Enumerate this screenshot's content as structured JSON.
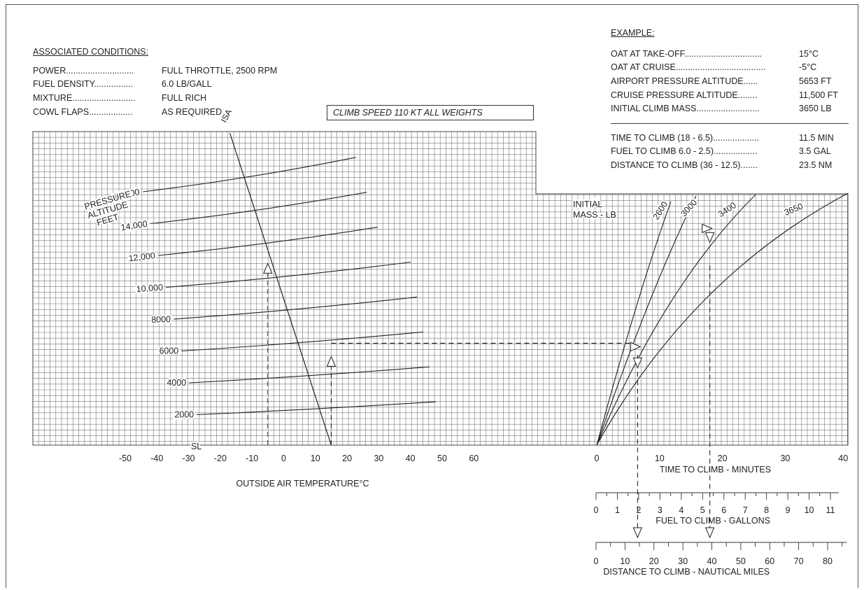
{
  "associated_conditions": {
    "title": "ASSOCIATED CONDITIONS:",
    "rows": [
      {
        "label": "POWER............................",
        "value": "FULL THROTTLE,  2500 RPM"
      },
      {
        "label": "FUEL DENSITY................",
        "value": "6.0 LB/GALL"
      },
      {
        "label": "MIXTURE..........................",
        "value": "FULL RICH"
      },
      {
        "label": "COWL FLAPS..................",
        "value": "AS REQUIRED"
      }
    ]
  },
  "climb_speed": "CLIMB SPEED  110 KT ALL WEIGHTS",
  "example": {
    "title": "EXAMPLE:",
    "rows": [
      {
        "label": "OAT AT TAKE-OFF................................",
        "value": "15°C"
      },
      {
        "label": "OAT AT CRUISE.....................................",
        "value": "-5°C"
      },
      {
        "label": "AIRPORT PRESSURE ALTITUDE......",
        "value": "5653 FT"
      },
      {
        "label": "CRUISE PRESSURE ALTITUDE........",
        "value": "11,500 FT"
      },
      {
        "label": "INITIAL CLIMB MASS..........................",
        "value": "3650 LB"
      }
    ],
    "results": [
      {
        "label": "TIME TO CLIMB (18 - 6.5)...................",
        "value": "11.5 MIN"
      },
      {
        "label": "FUEL TO CLIMB 6.0 - 2.5)..................",
        "value": "3.5 GAL"
      },
      {
        "label": "DISTANCE TO CLIMB (36 - 12.5).......",
        "value": "23.5 NM"
      }
    ]
  },
  "chart_data": {
    "type": "line",
    "left_panel": {
      "title": "PRESSURE ALTITUDE FEET",
      "xlabel": "OUTSIDE AIR TEMPERATURE°C",
      "xlim": [
        -50,
        60
      ],
      "xticks": [
        "-50",
        "-40",
        "-30",
        "-20",
        "-10",
        "0",
        "10",
        "20",
        "30",
        "40",
        "50",
        "60"
      ],
      "isa_label": "ISA",
      "altitude_lines": [
        {
          "label": "SL",
          "altitude_ft": 0
        },
        {
          "label": "2000",
          "altitude_ft": 2000
        },
        {
          "label": "4000",
          "altitude_ft": 4000
        },
        {
          "label": "6000",
          "altitude_ft": 6000
        },
        {
          "label": "8000",
          "altitude_ft": 8000
        },
        {
          "label": "10,000",
          "altitude_ft": 10000
        },
        {
          "label": "12,000",
          "altitude_ft": 12000
        },
        {
          "label": "14,000",
          "altitude_ft": 14000
        },
        {
          "label": "16,000",
          "altitude_ft": 16000
        }
      ]
    },
    "right_panel": {
      "title": "INITIAL MASS - LB",
      "xlabel": "TIME  TO CLIMB - MINUTES",
      "xlim": [
        0,
        40
      ],
      "xticks": [
        "0",
        "10",
        "20",
        "30",
        "40"
      ],
      "series": [
        {
          "name": "2600"
        },
        {
          "name": "3000"
        },
        {
          "name": "3400"
        },
        {
          "name": "3650"
        }
      ]
    },
    "fuel_scale": {
      "label": "FUEL TO CLIMB - GALLONS",
      "range": [
        0,
        11
      ],
      "ticks": [
        "0",
        "1",
        "2",
        "3",
        "4",
        "5",
        "6",
        "7",
        "8",
        "9",
        "10",
        "11"
      ]
    },
    "distance_scale": {
      "label": "DISTANCE TO CLIMB - NAUTICAL MILES",
      "range": [
        0,
        80
      ],
      "ticks": [
        "0",
        "10",
        "20",
        "30",
        "40",
        "50",
        "60",
        "70",
        "80"
      ]
    },
    "example_path": {
      "takeoff_oat_c": 15,
      "cruise_oat_c": -5,
      "airport_altitude_ft": 5653,
      "cruise_altitude_ft": 11500,
      "time_min": [
        6.5,
        18
      ],
      "fuel_gal": [
        2.5,
        6.0
      ],
      "distance_nm": [
        12.5,
        36
      ]
    },
    "grid": true
  }
}
